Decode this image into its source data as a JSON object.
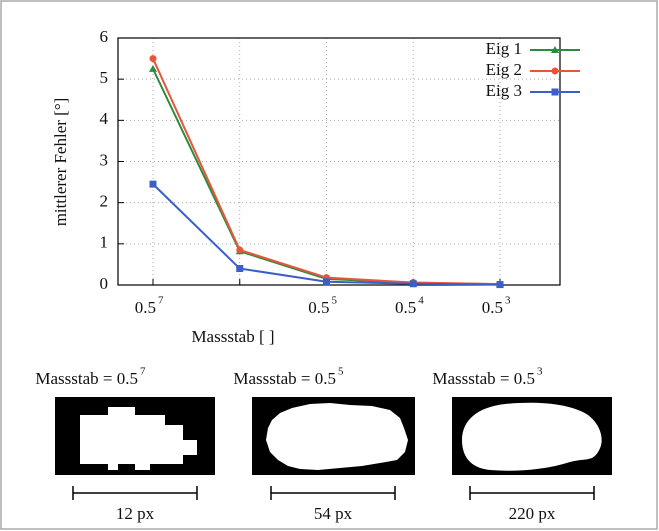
{
  "chart_data": {
    "type": "line",
    "categories": [
      "0.5",
      null,
      "0.5",
      "0.5",
      "0.5"
    ],
    "category_exponents": [
      "7",
      null,
      "5",
      "4",
      "3"
    ],
    "xlabel": "Massstab [ ]",
    "ylabel": "mittlerer Fehler [°]",
    "ylim": [
      0,
      6
    ],
    "yticks": [
      0,
      1,
      2,
      3,
      4,
      5,
      6
    ],
    "grid": true,
    "legend": "upper right",
    "series": [
      {
        "name": "Eig 1",
        "color": "#2e8b3e",
        "marker": "triangle",
        "values": [
          5.25,
          0.82,
          0.15,
          0.05,
          0.02
        ]
      },
      {
        "name": "Eig 2",
        "color": "#e8553a",
        "marker": "circle",
        "values": [
          5.5,
          0.85,
          0.18,
          0.06,
          0.02
        ]
      },
      {
        "name": "Eig 3",
        "color": "#3a5fc8",
        "marker": "square",
        "values": [
          2.45,
          0.4,
          0.08,
          0.03,
          0.01
        ]
      }
    ]
  },
  "panels": [
    {
      "title": "Massstab = 0.5",
      "exponent": "7",
      "scale": "12 px"
    },
    {
      "title": "Massstab = 0.5",
      "exponent": "5",
      "scale": "54 px"
    },
    {
      "title": "Massstab = 0.5",
      "exponent": "3",
      "scale": "220 px"
    }
  ]
}
